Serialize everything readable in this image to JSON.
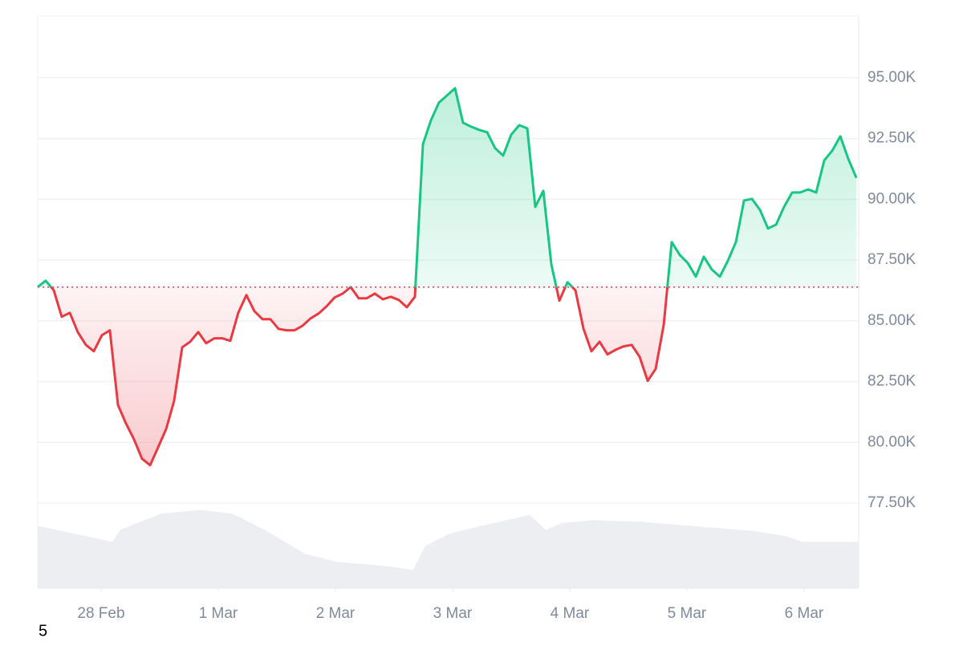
{
  "chart_data": {
    "type": "line",
    "footnote": "5",
    "up_color": "#16c784",
    "down_color": "#ea3943",
    "grid": true,
    "xlim": [
      -0.541,
      6.466
    ],
    "xticks": [
      {
        "value": 0,
        "label": "28 Feb"
      },
      {
        "value": 1,
        "label": "1 Mar"
      },
      {
        "value": 2,
        "label": "2 Mar"
      },
      {
        "value": 3,
        "label": "3 Mar"
      },
      {
        "value": 4,
        "label": "4 Mar"
      },
      {
        "value": 5,
        "label": "5 Mar"
      },
      {
        "value": 6,
        "label": "6 Mar"
      }
    ],
    "ylim": [
      74000,
      97540
    ],
    "yticks": [
      {
        "value": 77500,
        "label": "77.50K"
      },
      {
        "value": 80000,
        "label": "80.00K"
      },
      {
        "value": 82500,
        "label": "82.50K"
      },
      {
        "value": 85000,
        "label": "85.00K"
      },
      {
        "value": 87500,
        "label": "87.50K"
      },
      {
        "value": 90000,
        "label": "90.00K"
      },
      {
        "value": 92500,
        "label": "92.50K"
      },
      {
        "value": 95000,
        "label": "95.00K"
      }
    ],
    "x": [
      -0.541,
      -0.473,
      -0.404,
      -0.336,
      -0.267,
      -0.199,
      -0.13,
      -0.062,
      0.007,
      0.075,
      0.144,
      0.212,
      0.281,
      0.349,
      0.418,
      0.486,
      0.555,
      0.623,
      0.692,
      0.76,
      0.829,
      0.897,
      0.966,
      1.034,
      1.103,
      1.171,
      1.24,
      1.308,
      1.377,
      1.445,
      1.514,
      1.582,
      1.651,
      1.719,
      1.788,
      1.856,
      1.925,
      1.993,
      2.062,
      2.13,
      2.199,
      2.267,
      2.336,
      2.404,
      2.473,
      2.541,
      2.61,
      2.678,
      2.747,
      2.815,
      2.884,
      2.952,
      3.021,
      3.089,
      3.158,
      3.226,
      3.295,
      3.363,
      3.432,
      3.5,
      3.569,
      3.637,
      3.706,
      3.774,
      3.843,
      3.911,
      3.98,
      4.048,
      4.117,
      4.185,
      4.254,
      4.322,
      4.391,
      4.459,
      4.528,
      4.596,
      4.665,
      4.733,
      4.802,
      4.87,
      4.939,
      5.007,
      5.076,
      5.144,
      5.213,
      5.281,
      5.35,
      5.418,
      5.487,
      5.555,
      5.624,
      5.692,
      5.761,
      5.829,
      5.898,
      5.966,
      6.035,
      6.103,
      6.172,
      6.24,
      6.309,
      6.377,
      6.446
    ],
    "values": [
      86390,
      86650,
      86260,
      85170,
      85330,
      84540,
      84010,
      83750,
      84410,
      84610,
      81540,
      80780,
      80120,
      79330,
      79060,
      79790,
      80550,
      81700,
      83910,
      84140,
      84540,
      84080,
      84280,
      84280,
      84180,
      85330,
      86060,
      85400,
      85070,
      85070,
      84670,
      84610,
      84610,
      84800,
      85100,
      85300,
      85600,
      85960,
      86120,
      86390,
      85930,
      85930,
      86120,
      85890,
      85990,
      85860,
      85560,
      85990,
      92260,
      93250,
      93980,
      94270,
      94570,
      93150,
      92990,
      92860,
      92760,
      92100,
      91800,
      92660,
      93050,
      92920,
      89690,
      90350,
      87310,
      85830,
      86590,
      86260,
      84670,
      83750,
      84140,
      83620,
      83810,
      83950,
      84010,
      83520,
      82530,
      83020,
      84840,
      88240,
      87710,
      87380,
      86820,
      87640,
      87110,
      86820,
      87480,
      88240,
      89950,
      90020,
      89560,
      88800,
      88960,
      89690,
      90280,
      90280,
      90410,
      90280,
      91600,
      92000,
      92590,
      91670,
      90880
    ],
    "volume": {
      "color": "#eceef2",
      "y2lim": [
        0,
        100
      ],
      "x": [
        -0.541,
        0.096,
        0.164,
        0.507,
        0.849,
        1.123,
        1.397,
        1.74,
        2.014,
        2.425,
        2.664,
        2.767,
        2.973,
        3.247,
        3.658,
        3.795,
        3.932,
        4.205,
        4.616,
        5.027,
        5.575,
        5.849,
        5.986,
        6.466
      ],
      "values": [
        10.9,
        8.1,
        10.2,
        13.0,
        13.7,
        13.0,
        10.2,
        6.0,
        4.6,
        3.9,
        3.2,
        7.4,
        9.5,
        10.9,
        12.8,
        10.2,
        11.4,
        11.9,
        11.6,
        10.9,
        10.0,
        9.1,
        8.1,
        8.1
      ]
    }
  }
}
